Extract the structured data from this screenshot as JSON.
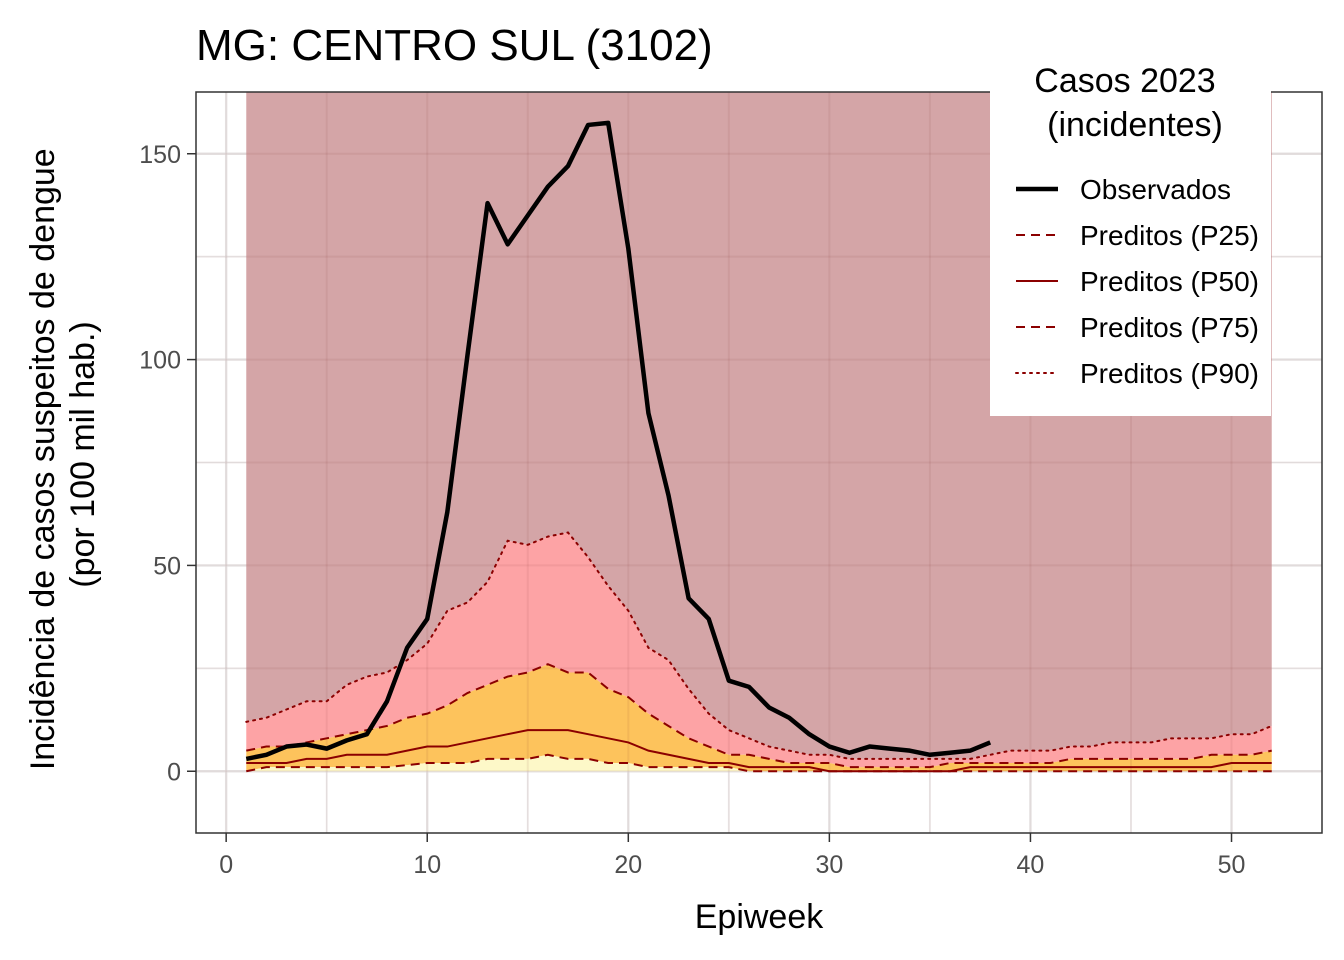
{
  "chart_data": {
    "type": "area",
    "title": "MG: CENTRO SUL (3102)",
    "xlabel": "Epiweek",
    "ylabel_lines": [
      "Incidência de casos suspeitos de dengue",
      "(por 100 mil hab.)"
    ],
    "xlim": [
      -1.5,
      54.5
    ],
    "ylim": [
      -15,
      165
    ],
    "x_ticks": [
      0,
      10,
      20,
      30,
      40,
      50
    ],
    "y_ticks": [
      0,
      50,
      100,
      150
    ],
    "grid": true,
    "legend": {
      "position": "top-right",
      "title_lines": [
        "Casos 2023",
        "(incidentes)"
      ],
      "entries": [
        {
          "label": "Observados",
          "style": "solid-thick",
          "color": "#000000"
        },
        {
          "label": "Preditos (P25)",
          "style": "dashed",
          "color": "#8b0000"
        },
        {
          "label": "Preditos (P50)",
          "style": "solid",
          "color": "#8b0000"
        },
        {
          "label": "Preditos (P75)",
          "style": "dashed",
          "color": "#8b0000"
        },
        {
          "label": "Preditos (P90)",
          "style": "dotted",
          "color": "#8b0000"
        }
      ]
    },
    "colors": {
      "band_top": "#d4a5a7",
      "band_p75_p90": "#fda3a5",
      "band_p25_p75": "#fdc35c",
      "band_0_p25": "#fdf8c8",
      "predicted_line": "#8b0000",
      "observed_line": "#000000"
    },
    "band_top_value": 165,
    "x": [
      1,
      2,
      3,
      4,
      5,
      6,
      7,
      8,
      9,
      10,
      11,
      12,
      13,
      14,
      15,
      16,
      17,
      18,
      19,
      20,
      21,
      22,
      23,
      24,
      25,
      26,
      27,
      28,
      29,
      30,
      31,
      32,
      33,
      34,
      35,
      36,
      37,
      38,
      39,
      40,
      41,
      42,
      43,
      44,
      45,
      46,
      47,
      48,
      49,
      50,
      51,
      52
    ],
    "series": [
      {
        "name": "Preditos (P25)",
        "values": [
          0,
          1,
          1,
          1,
          1,
          1,
          1,
          1,
          1.5,
          2,
          2,
          2,
          3,
          3,
          3,
          4,
          3,
          3,
          2,
          2,
          1,
          1,
          1,
          1,
          1,
          0,
          0,
          0,
          0,
          0,
          0,
          0,
          0,
          0,
          0,
          0,
          0,
          0,
          0,
          0,
          0,
          0,
          0,
          0,
          0,
          0,
          0,
          0,
          0,
          0,
          0,
          0
        ]
      },
      {
        "name": "Preditos (P50)",
        "values": [
          2,
          2,
          2,
          3,
          3,
          4,
          4,
          4,
          5,
          6,
          6,
          7,
          8,
          9,
          10,
          10,
          10,
          9,
          8,
          7,
          5,
          4,
          3,
          2,
          2,
          1,
          1,
          1,
          1,
          0,
          0,
          0,
          0,
          0,
          0,
          0,
          1,
          1,
          1,
          1,
          1,
          1,
          1,
          1,
          1,
          1,
          1,
          1,
          1,
          2,
          2,
          2
        ]
      },
      {
        "name": "Preditos (P75)",
        "values": [
          5,
          6,
          6,
          7,
          8,
          9,
          10,
          11,
          13,
          14,
          16,
          19,
          21,
          23,
          24,
          26,
          24,
          24,
          20,
          18,
          14,
          11,
          8,
          6,
          4,
          4,
          3,
          2,
          2,
          2,
          1,
          1,
          1,
          1,
          1,
          2,
          2,
          2,
          2,
          2,
          2,
          3,
          3,
          3,
          3,
          3,
          3,
          3,
          4,
          4,
          4,
          5
        ]
      },
      {
        "name": "Preditos (P90)",
        "values": [
          12,
          13,
          15,
          17,
          17,
          21,
          23,
          24,
          27,
          31,
          39,
          41,
          46,
          56,
          55,
          57,
          58,
          52,
          45,
          39,
          30,
          27,
          20,
          14,
          10,
          8,
          6,
          5,
          4,
          4,
          3,
          3,
          3,
          3,
          3,
          3,
          3,
          4,
          5,
          5,
          5,
          6,
          6,
          7,
          7,
          7,
          8,
          8,
          8,
          9,
          9,
          11
        ]
      },
      {
        "name": "Observados",
        "x": [
          1,
          2,
          3,
          4,
          5,
          6,
          7,
          8,
          9,
          10,
          11,
          12,
          13,
          14,
          15,
          16,
          17,
          18,
          19,
          20,
          21,
          22,
          23,
          24,
          25,
          26,
          27,
          28,
          29,
          30,
          31,
          32,
          33,
          34,
          35,
          36,
          37,
          38
        ],
        "values": [
          3,
          4,
          6,
          6.5,
          5.5,
          7.5,
          9,
          17,
          30,
          37,
          63,
          101,
          138,
          128,
          135,
          142,
          147,
          157,
          157.5,
          127,
          87,
          67,
          42,
          37,
          22,
          20.5,
          15.5,
          13,
          9,
          6,
          4.5,
          6,
          5.5,
          5,
          4,
          4.5,
          5,
          7
        ]
      }
    ]
  }
}
